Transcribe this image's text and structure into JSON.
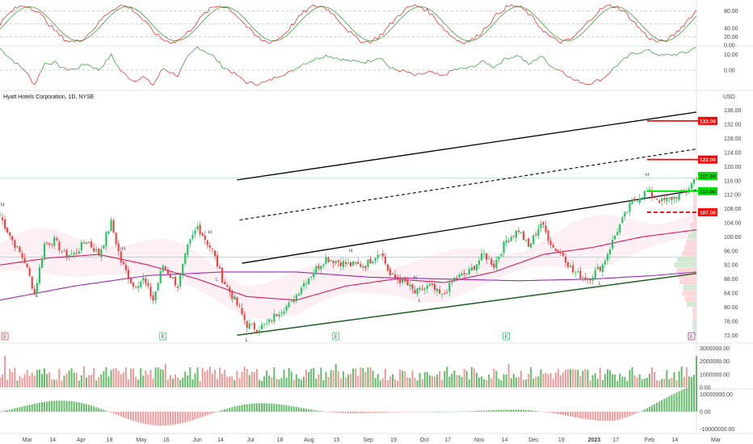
{
  "header": {
    "symbol_title": "Hyatt Hotels Corporation, 1D, NYSE",
    "currency": "USD"
  },
  "colors": {
    "up": "#22c55e",
    "down": "#ef4444",
    "ma_fast": "#d81b60",
    "ma_slow": "#9c27b0",
    "osc_k": "#e53935",
    "osc_d": "#43a047",
    "level_red": "#ff0000",
    "level_green": "#00e000",
    "trend": "#000000",
    "support": "#1b5e20",
    "vol_up": "#66bb6a",
    "vol_down": "#ef9a9a"
  },
  "chart_data": [
    {
      "type": "line",
      "panel": "stochastic",
      "y_ticks": [
        "80.00",
        "40.00",
        "20.00",
        "0.00"
      ],
      "ylim": [
        0,
        100
      ]
    },
    {
      "type": "line",
      "panel": "oscillator",
      "y_ticks": [
        "10.00",
        "0.00"
      ],
      "ylim": [
        -12,
        14
      ]
    },
    {
      "type": "candlestick",
      "panel": "price",
      "title": "Hyatt Hotels Corporation, 1D, NYSE",
      "ylim": [
        70,
        138
      ],
      "y_ticks": [
        "136.00",
        "132.00",
        "128.00",
        "124.00",
        "120.00",
        "116.00",
        "112.00",
        "108.00",
        "104.00",
        "100.00",
        "96.00",
        "92.00",
        "88.00",
        "84.00",
        "80.00",
        "76.00",
        "72.00"
      ],
      "price_tags": [
        {
          "label": "133.00",
          "value": 133.0,
          "color": "red"
        },
        {
          "label": "122.00",
          "value": 122.0,
          "color": "red"
        },
        {
          "label": "117.34",
          "value": 117.34,
          "color": "green"
        },
        {
          "label": "113.00",
          "value": 113.0,
          "color": "green"
        },
        {
          "label": "107.00",
          "value": 107.0,
          "color": "red"
        }
      ],
      "x_ticks": [
        "Mar",
        "14",
        "Apr",
        "18",
        "May",
        "16",
        "Jun",
        "14",
        "Jul",
        "18",
        "Aug",
        "15",
        "Sep",
        "19",
        "Oct",
        "17",
        "Nov",
        "14",
        "Dec",
        "19",
        "2023",
        "17",
        "Feb",
        "14",
        "Mar"
      ],
      "anchors": [
        [
          0,
          106
        ],
        [
          5,
          99
        ],
        [
          10,
          93
        ],
        [
          14,
          84
        ],
        [
          18,
          98
        ],
        [
          22,
          99
        ],
        [
          26,
          95
        ],
        [
          30,
          95
        ],
        [
          35,
          99
        ],
        [
          40,
          95
        ],
        [
          45,
          104
        ],
        [
          49,
          93
        ],
        [
          54,
          86
        ],
        [
          58,
          88
        ],
        [
          62,
          82
        ],
        [
          66,
          92
        ],
        [
          72,
          86
        ],
        [
          76,
          97
        ],
        [
          80,
          103
        ],
        [
          86,
          96
        ],
        [
          90,
          88
        ],
        [
          95,
          82
        ],
        [
          100,
          75
        ],
        [
          104,
          74
        ],
        [
          108,
          75
        ],
        [
          113,
          79
        ],
        [
          118,
          81
        ],
        [
          122,
          86
        ],
        [
          128,
          91
        ],
        [
          132,
          94
        ],
        [
          137,
          93
        ],
        [
          142,
          92
        ],
        [
          148,
          92
        ],
        [
          154,
          96
        ],
        [
          158,
          89
        ],
        [
          164,
          87
        ],
        [
          168,
          84
        ],
        [
          174,
          86
        ],
        [
          179,
          83
        ],
        [
          184,
          88
        ],
        [
          190,
          90
        ],
        [
          196,
          95
        ],
        [
          200,
          92
        ],
        [
          205,
          99
        ],
        [
          210,
          102
        ],
        [
          214,
          97
        ],
        [
          219,
          104
        ],
        [
          224,
          97
        ],
        [
          228,
          95
        ],
        [
          232,
          90
        ],
        [
          238,
          88
        ],
        [
          244,
          92
        ],
        [
          250,
          102
        ],
        [
          256,
          110
        ],
        [
          262,
          113
        ],
        [
          268,
          110
        ],
        [
          272,
          111
        ],
        [
          278,
          113
        ],
        [
          282,
          117.34
        ]
      ],
      "ma_fast": [
        [
          0,
          92
        ],
        [
          20,
          94
        ],
        [
          40,
          95
        ],
        [
          60,
          92
        ],
        [
          80,
          88
        ],
        [
          100,
          83
        ],
        [
          120,
          82
        ],
        [
          140,
          86
        ],
        [
          160,
          88
        ],
        [
          180,
          87
        ],
        [
          200,
          90
        ],
        [
          220,
          95
        ],
        [
          240,
          97
        ],
        [
          260,
          100
        ],
        [
          282,
          102
        ]
      ],
      "ma_slow": [
        [
          0,
          82
        ],
        [
          30,
          86
        ],
        [
          60,
          89
        ],
        [
          90,
          90
        ],
        [
          120,
          90
        ],
        [
          150,
          88.5
        ],
        [
          180,
          88
        ],
        [
          210,
          87.5
        ],
        [
          240,
          88
        ],
        [
          265,
          89
        ],
        [
          282,
          90
        ]
      ],
      "annotations": [
        "H",
        "L",
        "H",
        "L",
        "H",
        "L",
        "H",
        "L",
        "H",
        "L",
        "H"
      ],
      "event_markers": [
        "E",
        "E",
        "E",
        "E",
        "E"
      ]
    },
    {
      "type": "bar",
      "panel": "volume",
      "y_ticks": [
        "3000000.00",
        "2000000.00",
        "1000000.00",
        "0.00"
      ],
      "ylim": [
        0,
        3200000
      ]
    },
    {
      "type": "bar",
      "panel": "histogram",
      "y_ticks": [
        "10000000.00",
        "0.00",
        "-10000000.00"
      ],
      "ylim": [
        -12000000,
        12000000
      ]
    }
  ]
}
